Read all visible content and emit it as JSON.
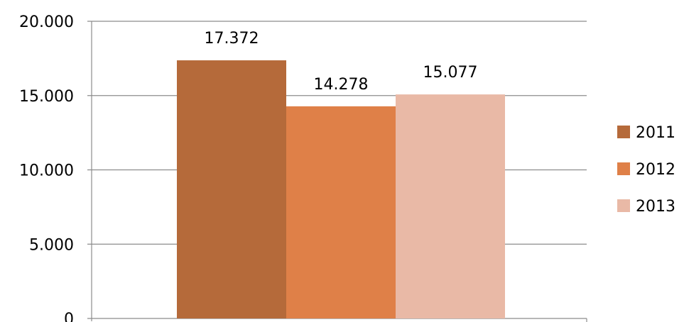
{
  "chart_data": {
    "type": "bar",
    "categories": [
      ""
    ],
    "series": [
      {
        "name": "2011",
        "values": [
          17372
        ],
        "label": "17.372",
        "color": "#B56A3A"
      },
      {
        "name": "2012",
        "values": [
          14278
        ],
        "label": "14.278",
        "color": "#DF8048"
      },
      {
        "name": "2013",
        "values": [
          15077
        ],
        "label": "15.077",
        "color": "#E9B9A6"
      }
    ],
    "ylim": [
      0,
      20000
    ],
    "yticks": [
      {
        "value": 0,
        "label": "0"
      },
      {
        "value": 5000,
        "label": "5.000"
      },
      {
        "value": 10000,
        "label": "10.000"
      },
      {
        "value": 15000,
        "label": "15.000"
      },
      {
        "value": 20000,
        "label": "20.000"
      }
    ],
    "title": "",
    "xlabel": "",
    "ylabel": "",
    "grid": true,
    "legend_position": "right",
    "colors": {
      "axis": "#8C8C8C",
      "grid": "#8C8C8C"
    }
  }
}
